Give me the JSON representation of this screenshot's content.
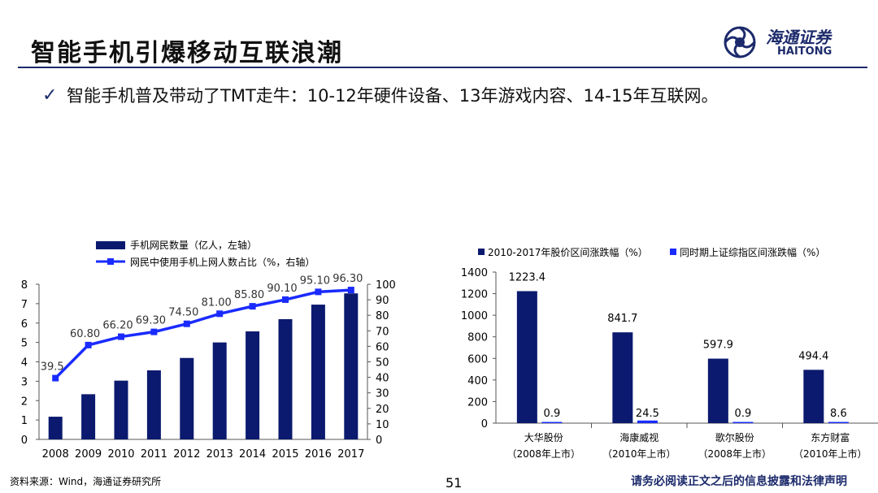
{
  "slide": {
    "title": "智能手机引爆移动互联浪潮",
    "bullet": "智能手机普及带动了TMT走牛：10-12年硬件设备、13年游戏内容、14-15年互联网。",
    "bullet_icon": "check-icon",
    "page_number": "51",
    "source": "资料来源：Wind，海通证券研究所",
    "disclaimer": "请务必阅读正文之后的信息披露和法律声明"
  },
  "logo": {
    "name_cn": "海通证券",
    "name_en": "HAITONG",
    "icon": "haitong-logo-icon",
    "color": "#1c2a6b"
  },
  "chart_data": [
    {
      "type": "bar",
      "categories": [
        "2008",
        "2009",
        "2010",
        "2011",
        "2012",
        "2013",
        "2014",
        "2015",
        "2016",
        "2017"
      ],
      "series": [
        {
          "name": "手机网民数量（亿人，左轴）",
          "type": "bar",
          "axis": "left",
          "color": "#0b1a6e",
          "values": [
            1.17,
            2.33,
            3.03,
            3.56,
            4.2,
            5.0,
            5.57,
            6.2,
            6.95,
            7.53
          ]
        },
        {
          "name": "网民中使用手机上网人数占比（%，右轴）",
          "type": "line",
          "axis": "right",
          "color": "#1a2bff",
          "values": [
            39.5,
            60.8,
            66.2,
            69.3,
            74.5,
            81.0,
            85.8,
            90.1,
            95.1,
            96.3
          ],
          "labels": [
            "39.5",
            "60.80",
            "66.20",
            "69.30",
            "74.50",
            "81.00",
            "85.80",
            "90.10",
            "95.10",
            "96.30"
          ]
        }
      ],
      "y_left": {
        "min": 0,
        "max": 8,
        "ticks": [
          "0",
          "1",
          "2",
          "3",
          "4",
          "5",
          "6",
          "7",
          "8"
        ]
      },
      "y_right": {
        "min": 0,
        "max": 100,
        "ticks": [
          "0",
          "10",
          "20",
          "30",
          "40",
          "50",
          "60",
          "70",
          "80",
          "90",
          "100"
        ]
      },
      "legend_position": "top-left",
      "grid": false
    },
    {
      "type": "bar",
      "categories": [
        "大华股份",
        "海康威视",
        "歌尔股份",
        "东方财富"
      ],
      "category_sublabels": [
        "（2008年上市）",
        "（2010年上市）",
        "（2008年上市）",
        "（2010年上市）"
      ],
      "series": [
        {
          "name": "2010-2017年股价区间涨跌幅（%）",
          "color": "#0b1a6e",
          "values": [
            1223.4,
            841.7,
            597.9,
            494.4
          ],
          "labels": [
            "1223.4",
            "841.7",
            "597.9",
            "494.4"
          ]
        },
        {
          "name": "同时期上证综指区间涨跌幅（%）",
          "color": "#1a2bff",
          "values": [
            0.9,
            24.5,
            0.9,
            8.6
          ],
          "labels": [
            "0.9",
            "24.5",
            "0.9",
            "8.6"
          ]
        }
      ],
      "y": {
        "min": 0,
        "max": 1400,
        "ticks": [
          "0",
          "200",
          "400",
          "600",
          "800",
          "1000",
          "1200",
          "1400"
        ]
      },
      "legend_position": "top",
      "grid": false
    }
  ]
}
